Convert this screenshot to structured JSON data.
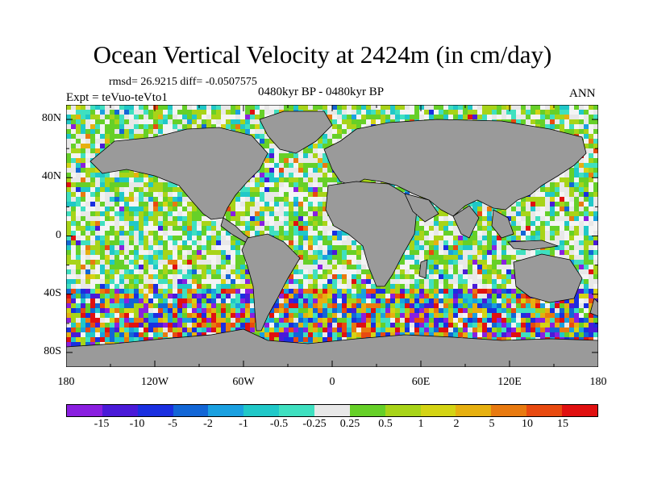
{
  "figure": {
    "title": "Ocean Vertical Velocity at 2424m (in cm/day)",
    "stats": "rmsd= 26.9215  diff= -0.0507575",
    "subtitle": "0480kyr BP - 0480kyr BP",
    "expt": "Expt = teVuo-teVto1",
    "season": "ANN"
  },
  "axes": {
    "lat_labels": [
      "80N",
      "40N",
      "0",
      "40S",
      "80S"
    ],
    "lat_values": [
      80,
      40,
      0,
      -40,
      -80
    ],
    "lon_labels": [
      "180",
      "120W",
      "60W",
      "0",
      "60E",
      "120E",
      "180"
    ],
    "lon_values": [
      -180,
      -120,
      -60,
      0,
      60,
      120,
      180
    ],
    "lat_range": [
      -90,
      90
    ],
    "lon_range": [
      -180,
      180
    ]
  },
  "colorbar": {
    "labels": [
      "-15",
      "-10",
      "-5",
      "-2",
      "-1",
      "-0.5",
      "-0.25",
      "0.25",
      "0.5",
      "1",
      "2",
      "5",
      "10",
      "15"
    ],
    "colors": [
      "#8a1fe0",
      "#4a1ad8",
      "#1a2fe0",
      "#1266d6",
      "#1aa0e0",
      "#20c8c8",
      "#3fe0c0",
      "#e8e8e8",
      "#66d028",
      "#a8d418",
      "#d4d414",
      "#e6b010",
      "#e87a10",
      "#e84a10",
      "#e01010"
    ]
  },
  "map": {
    "land_color": "#9a9a9a",
    "coast_color": "#000000"
  }
}
